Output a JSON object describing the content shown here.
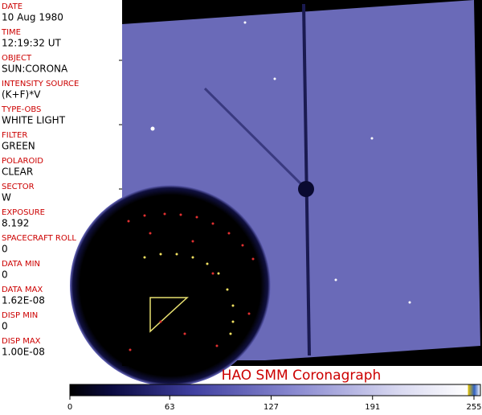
{
  "fields": [
    {
      "label": "DATE",
      "value": "10 Aug 1980"
    },
    {
      "label": "TIME",
      "value": "12:19:32 UT"
    },
    {
      "label": "OBJECT",
      "value": "SUN:CORONA"
    },
    {
      "label": "INTENSITY SOURCE",
      "value": "(K+F)*V"
    },
    {
      "label": "TYPE-OBS",
      "value": "WHITE LIGHT"
    },
    {
      "label": "FILTER",
      "value": "GREEN"
    },
    {
      "label": "POLAROID",
      "value": "CLEAR"
    },
    {
      "label": "SECTOR",
      "value": "W"
    },
    {
      "label": "EXPOSURE",
      "value": "8.192"
    },
    {
      "label": "SPACECRAFT ROLL",
      "value": "0"
    },
    {
      "label": "DATA MIN",
      "value": "0"
    },
    {
      "label": "DATA MAX",
      "value": "1.62E-08"
    },
    {
      "label": "DISP MIN",
      "value": "0"
    },
    {
      "label": "DISP MAX",
      "value": "1.00E-08"
    }
  ],
  "title": "HAO  SMM  Coronagraph",
  "colorbar": {
    "range": [
      0,
      255
    ],
    "ticks": [
      0,
      63,
      127,
      191,
      255
    ]
  }
}
